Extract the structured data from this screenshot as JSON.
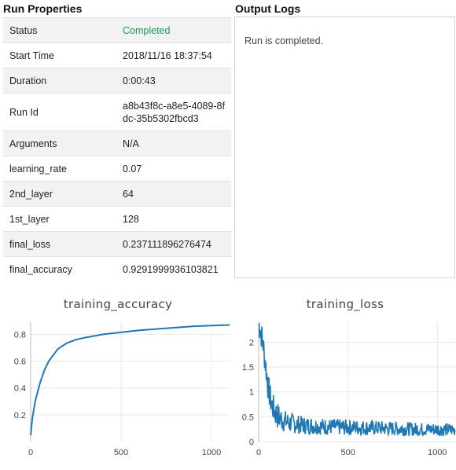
{
  "run_properties": {
    "title": "Run Properties",
    "rows": [
      {
        "key": "Status",
        "value": "Completed"
      },
      {
        "key": "Start Time",
        "value": "2018/11/16 18:37:54"
      },
      {
        "key": "Duration",
        "value": "0:00:43"
      },
      {
        "key": "Run Id",
        "value": "a8b43f8c-a8e5-4089-8fdc-35b5302fbcd3"
      },
      {
        "key": "Arguments",
        "value": "N/A"
      },
      {
        "key": "learning_rate",
        "value": "0.07"
      },
      {
        "key": "2nd_layer",
        "value": "64"
      },
      {
        "key": "1st_layer",
        "value": "128"
      },
      {
        "key": "final_loss",
        "value": "0.237111896276474"
      },
      {
        "key": "final_accuracy",
        "value": "0.9291999936103821"
      }
    ]
  },
  "output_logs": {
    "title": "Output Logs",
    "text": "Run is completed."
  },
  "colors": {
    "line": "#1f77b4",
    "status_completed": "#1a9850",
    "grid": "#e8e8e8"
  },
  "chart_data": [
    {
      "type": "line",
      "title": "training_accuracy",
      "xlim": [
        0,
        1100
      ],
      "ylim": [
        0,
        0.89
      ],
      "xticks": [
        0,
        500,
        1000
      ],
      "yticks": [
        0.2,
        0.4,
        0.6,
        0.8
      ],
      "grid": true,
      "series": [
        {
          "x": [
            0,
            10,
            25,
            50,
            75,
            100,
            150,
            200,
            250,
            300,
            400,
            500,
            600,
            700,
            800,
            900,
            1000,
            1100
          ],
          "y": [
            0.05,
            0.18,
            0.3,
            0.43,
            0.53,
            0.6,
            0.69,
            0.735,
            0.76,
            0.775,
            0.8,
            0.815,
            0.83,
            0.84,
            0.85,
            0.86,
            0.865,
            0.87
          ]
        }
      ]
    },
    {
      "type": "line",
      "title": "training_loss",
      "xlim": [
        0,
        1100
      ],
      "ylim": [
        0,
        2.4
      ],
      "xticks": [
        0,
        500,
        1000
      ],
      "yticks": [
        0,
        0.5,
        1,
        1.5,
        2
      ],
      "grid": true,
      "noisy": true,
      "series": [
        {
          "x": [
            0,
            10,
            25,
            40,
            55,
            70,
            90,
            110,
            140,
            170,
            200,
            250,
            300,
            400,
            500,
            600,
            700,
            800,
            900,
            1000,
            1100
          ],
          "y": [
            2.35,
            2.25,
            1.95,
            1.5,
            1.05,
            0.78,
            0.6,
            0.5,
            0.42,
            0.38,
            0.36,
            0.33,
            0.32,
            0.3,
            0.29,
            0.28,
            0.27,
            0.26,
            0.25,
            0.25,
            0.24
          ]
        }
      ]
    }
  ]
}
